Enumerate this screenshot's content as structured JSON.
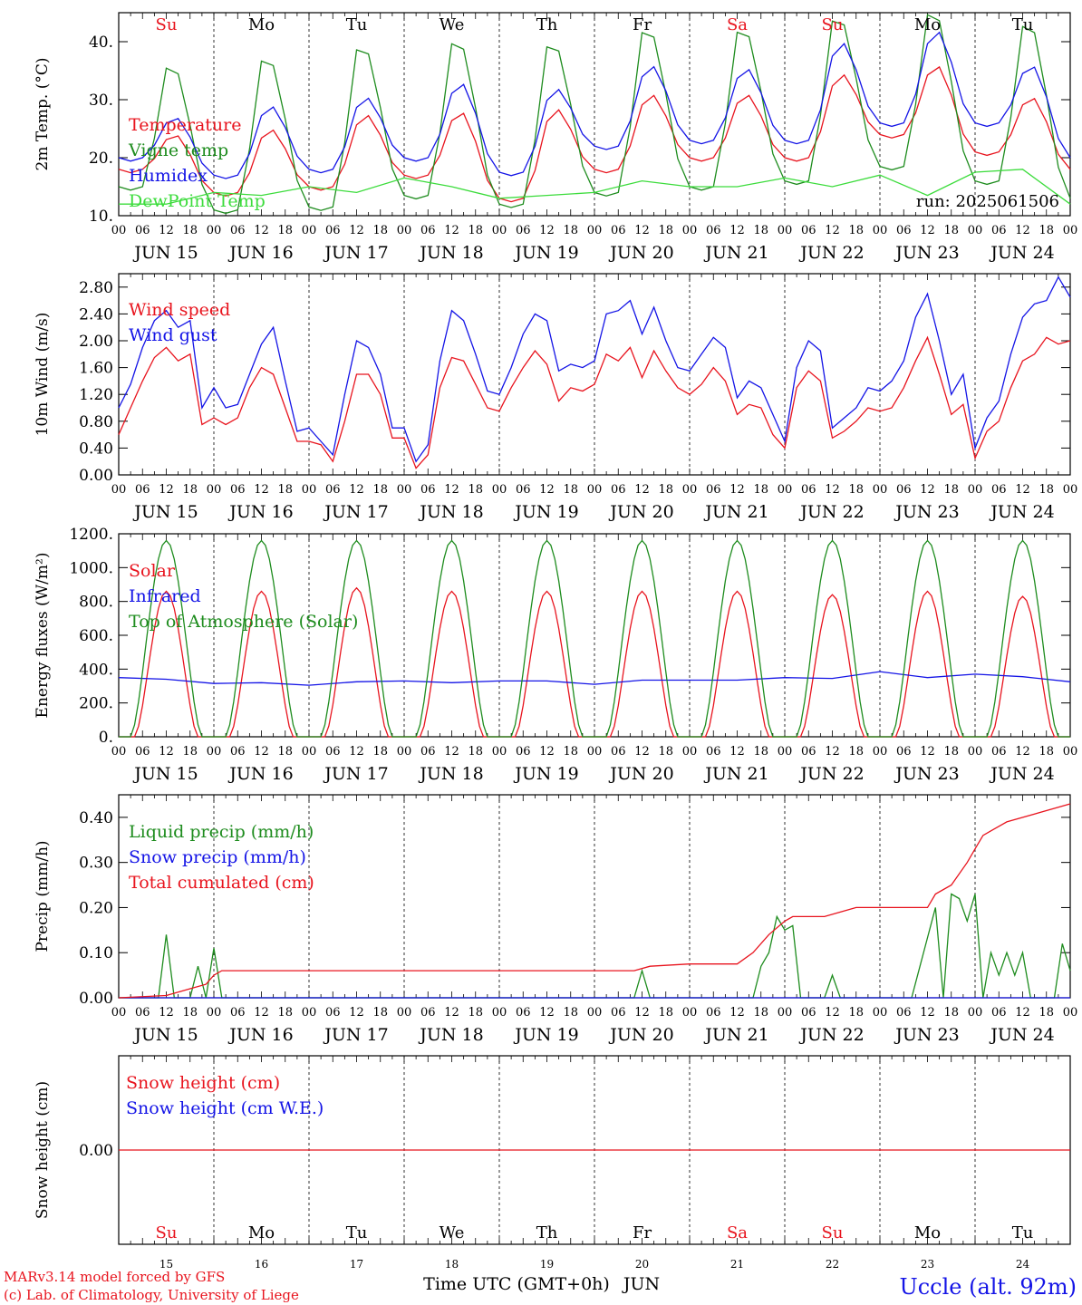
{
  "colors": {
    "red": "#e8141e",
    "darkgreen": "#1e8c1e",
    "blue": "#1414e6",
    "lightgreen": "#3cdc3c",
    "black": "#000000"
  },
  "days_top": [
    {
      "label": "Su",
      "color": "#e8141e"
    },
    {
      "label": "Mo",
      "color": "#000000"
    },
    {
      "label": "Tu",
      "color": "#000000"
    },
    {
      "label": "We",
      "color": "#000000"
    },
    {
      "label": "Th",
      "color": "#000000"
    },
    {
      "label": "Fr",
      "color": "#000000"
    },
    {
      "label": "Sa",
      "color": "#e8141e"
    },
    {
      "label": "Su",
      "color": "#e8141e"
    },
    {
      "label": "Mo",
      "color": "#000000"
    },
    {
      "label": "Tu",
      "color": "#000000"
    }
  ],
  "hour_labels": [
    "00",
    "06",
    "12",
    "18"
  ],
  "date_labels": [
    "JUN 15",
    "JUN 16",
    "JUN 17",
    "JUN 18",
    "JUN 19",
    "JUN 20",
    "JUN 21",
    "JUN 22",
    "JUN 23",
    "JUN 24"
  ],
  "bottom_day_numbers": [
    "15",
    "16",
    "17",
    "18",
    "19",
    "20",
    "21",
    "22",
    "23",
    "24"
  ],
  "footer": {
    "model": "MARv3.14 model forced by GFS",
    "credit": "(c) Lab. of Climatology, University of Liege",
    "xlabel": "Time UTC (GMT+0h)",
    "month": "JUN",
    "station": "Uccle (alt. 92m)"
  },
  "chart_data": [
    {
      "type": "line",
      "ylabel": "2m Temp. (°C)",
      "ylim": [
        10,
        45
      ],
      "yticks": [
        "10.",
        "20.",
        "30.",
        "40."
      ],
      "annotation": "run: 2025061506",
      "legend": [
        {
          "label": "Temperature",
          "color": "#e8141e"
        },
        {
          "label": "Vigne temp",
          "color": "#1e8c1e"
        },
        {
          "label": "Humidex",
          "color": "#1414e6"
        },
        {
          "label": "DewPoint Temp",
          "color": "#3cdc3c"
        }
      ],
      "series": [
        {
          "name": "Temperature",
          "color": "#e8141e",
          "shape": "diurnal",
          "min": [
            18,
            14,
            15,
            17,
            13,
            18,
            20,
            20,
            24,
            21,
            18
          ],
          "max": [
            24,
            25,
            27.5,
            28,
            28.5,
            31,
            31,
            34.5,
            36,
            30.5
          ],
          "peak_hour": 14
        },
        {
          "name": "Vigne temp",
          "color": "#1e8c1e",
          "shape": "diurnal",
          "min": [
            15,
            11,
            11.5,
            13.5,
            12,
            14,
            15,
            16,
            18.5,
            16,
            13
          ],
          "max": [
            36.5,
            38,
            40,
            41,
            40.5,
            43,
            43,
            45,
            46,
            44
          ],
          "peak_hour": 13
        },
        {
          "name": "Humidex",
          "color": "#1414e6",
          "shape": "diurnal",
          "min": [
            20,
            17,
            18,
            20,
            17.5,
            22,
            23,
            23,
            26,
            26,
            20
          ],
          "max": [
            27,
            29,
            30.5,
            33,
            32,
            36,
            35.5,
            40,
            42,
            36
          ],
          "peak_hour": 14
        },
        {
          "name": "DewPoint Temp",
          "color": "#3cdc3c",
          "x": [
            0,
            12,
            24,
            36,
            48,
            60,
            72,
            84,
            96,
            108,
            120,
            132,
            144,
            156,
            168,
            180,
            192,
            204,
            216,
            228,
            240
          ],
          "values": [
            12,
            12,
            14,
            13.5,
            15,
            14,
            16.5,
            15,
            13,
            13.5,
            14,
            16,
            15,
            15,
            16.5,
            15,
            17,
            13.5,
            17.5,
            18,
            12
          ]
        }
      ]
    },
    {
      "type": "line",
      "ylabel": "10m Wind (m/s)",
      "ylim": [
        0,
        3.0
      ],
      "yticks": [
        "0.00",
        "0.40",
        "0.80",
        "1.20",
        "1.60",
        "2.00",
        "2.40",
        "2.80"
      ],
      "legend": [
        {
          "label": "Wind speed",
          "color": "#e8141e"
        },
        {
          "label": "Wind gust",
          "color": "#1414e6"
        }
      ],
      "series": [
        {
          "name": "Wind speed",
          "color": "#e8141e",
          "x": [
            0,
            3,
            6,
            9,
            12,
            15,
            18,
            21,
            24,
            27,
            30,
            33,
            36,
            39,
            42,
            45,
            48,
            51,
            54,
            57,
            60,
            63,
            66,
            69,
            72,
            75,
            78,
            81,
            84,
            87,
            90,
            93,
            96,
            99,
            102,
            105,
            108,
            111,
            114,
            117,
            120,
            123,
            126,
            129,
            132,
            135,
            138,
            141,
            144,
            147,
            150,
            153,
            156,
            159,
            162,
            165,
            168,
            171,
            174,
            177,
            180,
            183,
            186,
            189,
            192,
            195,
            198,
            201,
            204,
            207,
            210,
            213,
            216,
            219,
            222,
            225,
            228,
            231,
            234,
            237,
            240
          ],
          "values": [
            0.6,
            1.0,
            1.4,
            1.75,
            1.9,
            1.7,
            1.8,
            0.75,
            0.85,
            0.75,
            0.85,
            1.3,
            1.6,
            1.5,
            1.0,
            0.5,
            0.5,
            0.45,
            0.2,
            0.8,
            1.5,
            1.5,
            1.2,
            0.55,
            0.55,
            0.1,
            0.3,
            1.3,
            1.75,
            1.7,
            1.35,
            1.0,
            0.95,
            1.3,
            1.6,
            1.85,
            1.65,
            1.1,
            1.3,
            1.25,
            1.35,
            1.8,
            1.7,
            1.9,
            1.45,
            1.85,
            1.55,
            1.3,
            1.2,
            1.35,
            1.6,
            1.4,
            0.9,
            1.05,
            1.0,
            0.6,
            0.4,
            1.3,
            1.55,
            1.4,
            0.55,
            0.65,
            0.8,
            1.0,
            0.95,
            1.0,
            1.3,
            1.7,
            2.05,
            1.5,
            0.9,
            1.05,
            0.25,
            0.65,
            0.8,
            1.3,
            1.7,
            1.8,
            2.05,
            1.95,
            2.0
          ]
        },
        {
          "name": "Wind gust",
          "color": "#1414e6",
          "x": [
            0,
            3,
            6,
            9,
            12,
            15,
            18,
            21,
            24,
            27,
            30,
            33,
            36,
            39,
            42,
            45,
            48,
            51,
            54,
            57,
            60,
            63,
            66,
            69,
            72,
            75,
            78,
            81,
            84,
            87,
            90,
            93,
            96,
            99,
            102,
            105,
            108,
            111,
            114,
            117,
            120,
            123,
            126,
            129,
            132,
            135,
            138,
            141,
            144,
            147,
            150,
            153,
            156,
            159,
            162,
            165,
            168,
            171,
            174,
            177,
            180,
            183,
            186,
            189,
            192,
            195,
            198,
            201,
            204,
            207,
            210,
            213,
            216,
            219,
            222,
            225,
            228,
            231,
            234,
            237,
            240
          ],
          "values": [
            1.0,
            1.35,
            1.9,
            2.3,
            2.45,
            2.2,
            2.3,
            1.0,
            1.3,
            1.0,
            1.05,
            1.5,
            1.95,
            2.2,
            1.4,
            0.65,
            0.7,
            0.5,
            0.3,
            1.2,
            2.0,
            1.9,
            1.5,
            0.7,
            0.7,
            0.2,
            0.45,
            1.7,
            2.45,
            2.3,
            1.8,
            1.25,
            1.2,
            1.6,
            2.1,
            2.4,
            2.3,
            1.55,
            1.65,
            1.6,
            1.7,
            2.4,
            2.45,
            2.6,
            2.1,
            2.5,
            2.0,
            1.6,
            1.55,
            1.8,
            2.05,
            1.9,
            1.15,
            1.4,
            1.3,
            0.9,
            0.5,
            1.6,
            2.0,
            1.85,
            0.7,
            0.85,
            1.0,
            1.3,
            1.25,
            1.4,
            1.7,
            2.35,
            2.7,
            2.0,
            1.2,
            1.5,
            0.4,
            0.85,
            1.1,
            1.8,
            2.35,
            2.55,
            2.6,
            2.95,
            2.65
          ]
        }
      ]
    },
    {
      "type": "line",
      "ylabel": "Energy fluxes (W/m²)",
      "ylim": [
        0,
        1200
      ],
      "yticks": [
        "0.",
        "200.",
        "400.",
        "600.",
        "800.",
        "1000.",
        "1200."
      ],
      "legend": [
        {
          "label": "Solar",
          "color": "#e8141e"
        },
        {
          "label": "Infrared",
          "color": "#1414e6"
        },
        {
          "label": "Top of Atmosphere (Solar)",
          "color": "#1e8c1e"
        }
      ],
      "series": [
        {
          "name": "Solar",
          "color": "#e8141e",
          "shape": "daylight",
          "peaks": [
            860,
            860,
            880,
            860,
            860,
            860,
            860,
            840,
            860,
            830
          ],
          "sunrise": 4,
          "sunset": 20
        },
        {
          "name": "Infrared",
          "color": "#1414e6",
          "x": [
            0,
            12,
            24,
            36,
            48,
            60,
            72,
            84,
            96,
            108,
            120,
            132,
            144,
            156,
            168,
            180,
            192,
            204,
            216,
            228,
            240
          ],
          "values": [
            350,
            340,
            315,
            320,
            305,
            325,
            330,
            320,
            330,
            330,
            310,
            335,
            335,
            335,
            350,
            345,
            385,
            350,
            370,
            355,
            325
          ]
        },
        {
          "name": "Top of Atmosphere (Solar)",
          "color": "#1e8c1e",
          "shape": "daylight",
          "peaks": [
            1160,
            1160,
            1160,
            1160,
            1160,
            1160,
            1160,
            1160,
            1160,
            1160
          ],
          "sunrise": 3,
          "sunset": 21
        }
      ]
    },
    {
      "type": "line",
      "ylabel": "Precip (mm/h)",
      "ylim": [
        0,
        0.45
      ],
      "yticks": [
        "0.00",
        "0.10",
        "0.20",
        "0.30",
        "0.40"
      ],
      "legend": [
        {
          "label": "Liquid precip (mm/h)",
          "color": "#1e8c1e"
        },
        {
          "label": "Snow precip (mm/h)",
          "color": "#1414e6"
        },
        {
          "label": "Total cumulated (cm)",
          "color": "#e8141e"
        }
      ],
      "series": [
        {
          "name": "Liquid precip (mm/h)",
          "color": "#1e8c1e",
          "x": [
            0,
            2,
            10,
            12,
            14,
            18,
            20,
            22,
            24,
            26,
            130,
            132,
            134,
            136,
            160,
            162,
            164,
            166,
            168,
            170,
            172,
            178,
            180,
            182,
            186,
            188,
            190,
            200,
            206,
            208,
            210,
            212,
            214,
            216,
            218,
            220,
            222,
            224,
            226,
            228,
            230,
            232,
            234,
            236,
            238,
            240
          ],
          "values": [
            0,
            0,
            0,
            0.14,
            0,
            0,
            0.07,
            0,
            0.11,
            0,
            0,
            0.06,
            0,
            0,
            0,
            0.07,
            0.1,
            0.18,
            0.15,
            0.16,
            0,
            0,
            0.05,
            0,
            0,
            0,
            0,
            0,
            0.2,
            0,
            0.23,
            0.22,
            0.17,
            0.23,
            0,
            0.1,
            0.05,
            0.1,
            0.05,
            0.1,
            0,
            0,
            0,
            0,
            0.12,
            0.06
          ]
        },
        {
          "name": "Snow precip (mm/h)",
          "color": "#1414e6",
          "x": [
            0,
            240
          ],
          "values": [
            0,
            0
          ]
        },
        {
          "name": "Total cumulated (cm)",
          "color": "#e8141e",
          "x": [
            0,
            12,
            18,
            22,
            24,
            26,
            130,
            134,
            144,
            156,
            160,
            164,
            168,
            170,
            178,
            182,
            186,
            204,
            206,
            210,
            214,
            216,
            218,
            220,
            222,
            224,
            240
          ],
          "values": [
            0,
            0.005,
            0.02,
            0.03,
            0.05,
            0.06,
            0.06,
            0.07,
            0.075,
            0.075,
            0.1,
            0.14,
            0.17,
            0.18,
            0.18,
            0.19,
            0.2,
            0.2,
            0.23,
            0.25,
            0.3,
            0.33,
            0.36,
            0.37,
            0.38,
            0.39,
            0.43
          ]
        }
      ]
    },
    {
      "type": "line",
      "ylabel": "Snow height (cm)",
      "ylim": [
        -1,
        1
      ],
      "yticks": [
        "0.00"
      ],
      "legend": [
        {
          "label": "Snow height (cm)",
          "color": "#e8141e"
        },
        {
          "label": "Snow height (cm W.E.)",
          "color": "#1414e6"
        }
      ],
      "series": [
        {
          "name": "Snow height (cm)",
          "color": "#e8141e",
          "x": [
            0,
            240
          ],
          "values": [
            0,
            0
          ]
        }
      ]
    }
  ]
}
